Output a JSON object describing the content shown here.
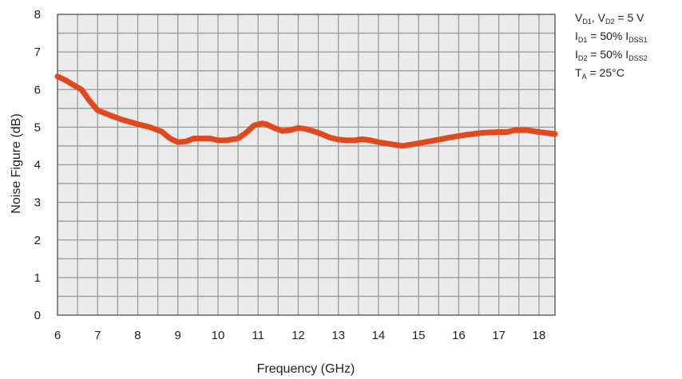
{
  "chart_data": {
    "type": "line",
    "title": "",
    "xlabel": "Frequency (GHz)",
    "ylabel": "Noise Figure (dB)",
    "xlim": [
      6,
      18.4
    ],
    "ylim": [
      0,
      8
    ],
    "xticks": [
      6,
      7,
      8,
      9,
      10,
      11,
      12,
      13,
      14,
      15,
      16,
      17,
      18
    ],
    "yticks": [
      0,
      1,
      2,
      3,
      4,
      5,
      6,
      7,
      8
    ],
    "grid": true,
    "legend": "none",
    "series": [
      {
        "color": "#e0481e",
        "x": [
          6.0,
          6.2,
          6.4,
          6.6,
          6.8,
          7.0,
          7.3,
          7.6,
          8.0,
          8.3,
          8.6,
          8.8,
          9.0,
          9.2,
          9.4,
          9.6,
          9.8,
          10.0,
          10.2,
          10.5,
          10.7,
          10.9,
          11.1,
          11.2,
          11.4,
          11.6,
          11.8,
          12.0,
          12.2,
          12.5,
          12.8,
          13.0,
          13.2,
          13.4,
          13.6,
          13.8,
          14.0,
          14.3,
          14.6,
          15.0,
          15.4,
          15.8,
          16.2,
          16.6,
          17.0,
          17.2,
          17.4,
          17.7,
          18.0,
          18.4
        ],
        "y": [
          6.35,
          6.25,
          6.12,
          6.0,
          5.7,
          5.45,
          5.32,
          5.2,
          5.08,
          5.0,
          4.88,
          4.7,
          4.6,
          4.62,
          4.7,
          4.7,
          4.7,
          4.65,
          4.65,
          4.7,
          4.85,
          5.05,
          5.1,
          5.08,
          4.98,
          4.9,
          4.92,
          4.98,
          4.95,
          4.85,
          4.72,
          4.67,
          4.65,
          4.65,
          4.68,
          4.65,
          4.6,
          4.55,
          4.5,
          4.57,
          4.65,
          4.73,
          4.8,
          4.85,
          4.87,
          4.87,
          4.92,
          4.92,
          4.87,
          4.82
        ]
      }
    ]
  },
  "conditions": {
    "line1": {
      "a": "V",
      "a_sub": "D1",
      "b": ", V",
      "b_sub": "D2",
      "c": " = 5 V"
    },
    "line2": {
      "a": "I",
      "a_sub": "D1",
      "b": " = 50% I",
      "b_sub": "DSS1"
    },
    "line3": {
      "a": "I",
      "a_sub": "D2",
      "b": " = 50% I",
      "b_sub": "DSS2"
    },
    "line4": {
      "a": "T",
      "a_sub": "A",
      "b": " = 25°C"
    }
  },
  "colors": {
    "plot_bg": "#ebebeb",
    "grid": "#9a9a9a",
    "axis": "#555555",
    "line": "#e0481e"
  }
}
